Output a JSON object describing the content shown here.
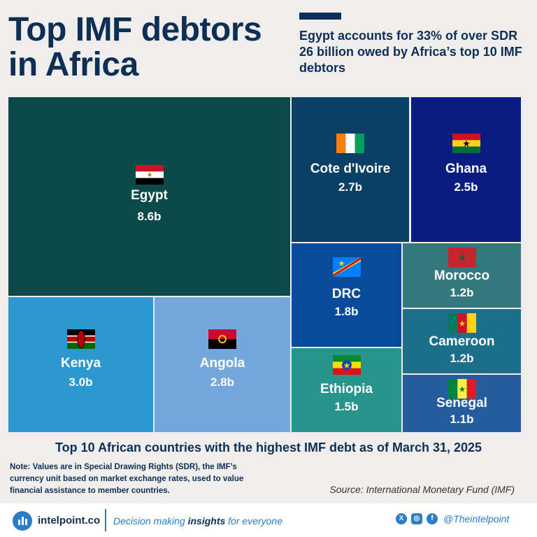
{
  "header": {
    "title": "Top IMF debtors in Africa",
    "subtitle": "Egypt accounts for 33% of over SDR 26 billion owed by Africa’s top 10 IMF debtors"
  },
  "chart_data": {
    "type": "treemap",
    "unit": "b",
    "caption": "Top 10 African countries with the highest IMF debt as of March 31, 2025",
    "items": [
      {
        "name": "Egypt",
        "label": "8.6b",
        "value": 8.6,
        "color": "#0b4a48",
        "flag": "egypt"
      },
      {
        "name": "Kenya",
        "label": "3.0b",
        "value": 3.0,
        "color": "#2f97cf",
        "flag": "kenya"
      },
      {
        "name": "Angola",
        "label": "2.8b",
        "value": 2.8,
        "color": "#74a8dc",
        "flag": "angola"
      },
      {
        "name": "Cote d'Ivoire",
        "label": "2.7b",
        "value": 2.7,
        "color": "#0b3f66",
        "flag": "cotedivoire"
      },
      {
        "name": "Ghana",
        "label": "2.5b",
        "value": 2.5,
        "color": "#091c7f",
        "flag": "ghana"
      },
      {
        "name": "DRC",
        "label": "1.8b",
        "value": 1.8,
        "color": "#094b9b",
        "flag": "drc"
      },
      {
        "name": "Ethiopia",
        "label": "1.5b",
        "value": 1.5,
        "color": "#27958c",
        "flag": "ethiopia"
      },
      {
        "name": "Morocco",
        "label": "1.2b",
        "value": 1.2,
        "color": "#33787d",
        "flag": "morocco"
      },
      {
        "name": "Cameroon",
        "label": "1.2b",
        "value": 1.2,
        "color": "#1d6e8b",
        "flag": "cameroon"
      },
      {
        "name": "Senegal",
        "label": "1.1b",
        "value": 1.1,
        "color": "#235d9e",
        "flag": "senegal"
      }
    ]
  },
  "note": "Note: Values are in Special Drawing Rights (SDR), the IMF’s currency unit based on market exchange rates, used to value financial assistance to member countries.",
  "source": "Source: International Monetary Fund (IMF)",
  "footer": {
    "brand": "intelpoint.co",
    "tagline_pre": "Decision making ",
    "tagline_bold": "insights",
    "tagline_post": " for everyone",
    "handle": "@Theintelpoint",
    "icons": [
      "x-icon",
      "instagram-icon",
      "facebook-icon"
    ]
  }
}
